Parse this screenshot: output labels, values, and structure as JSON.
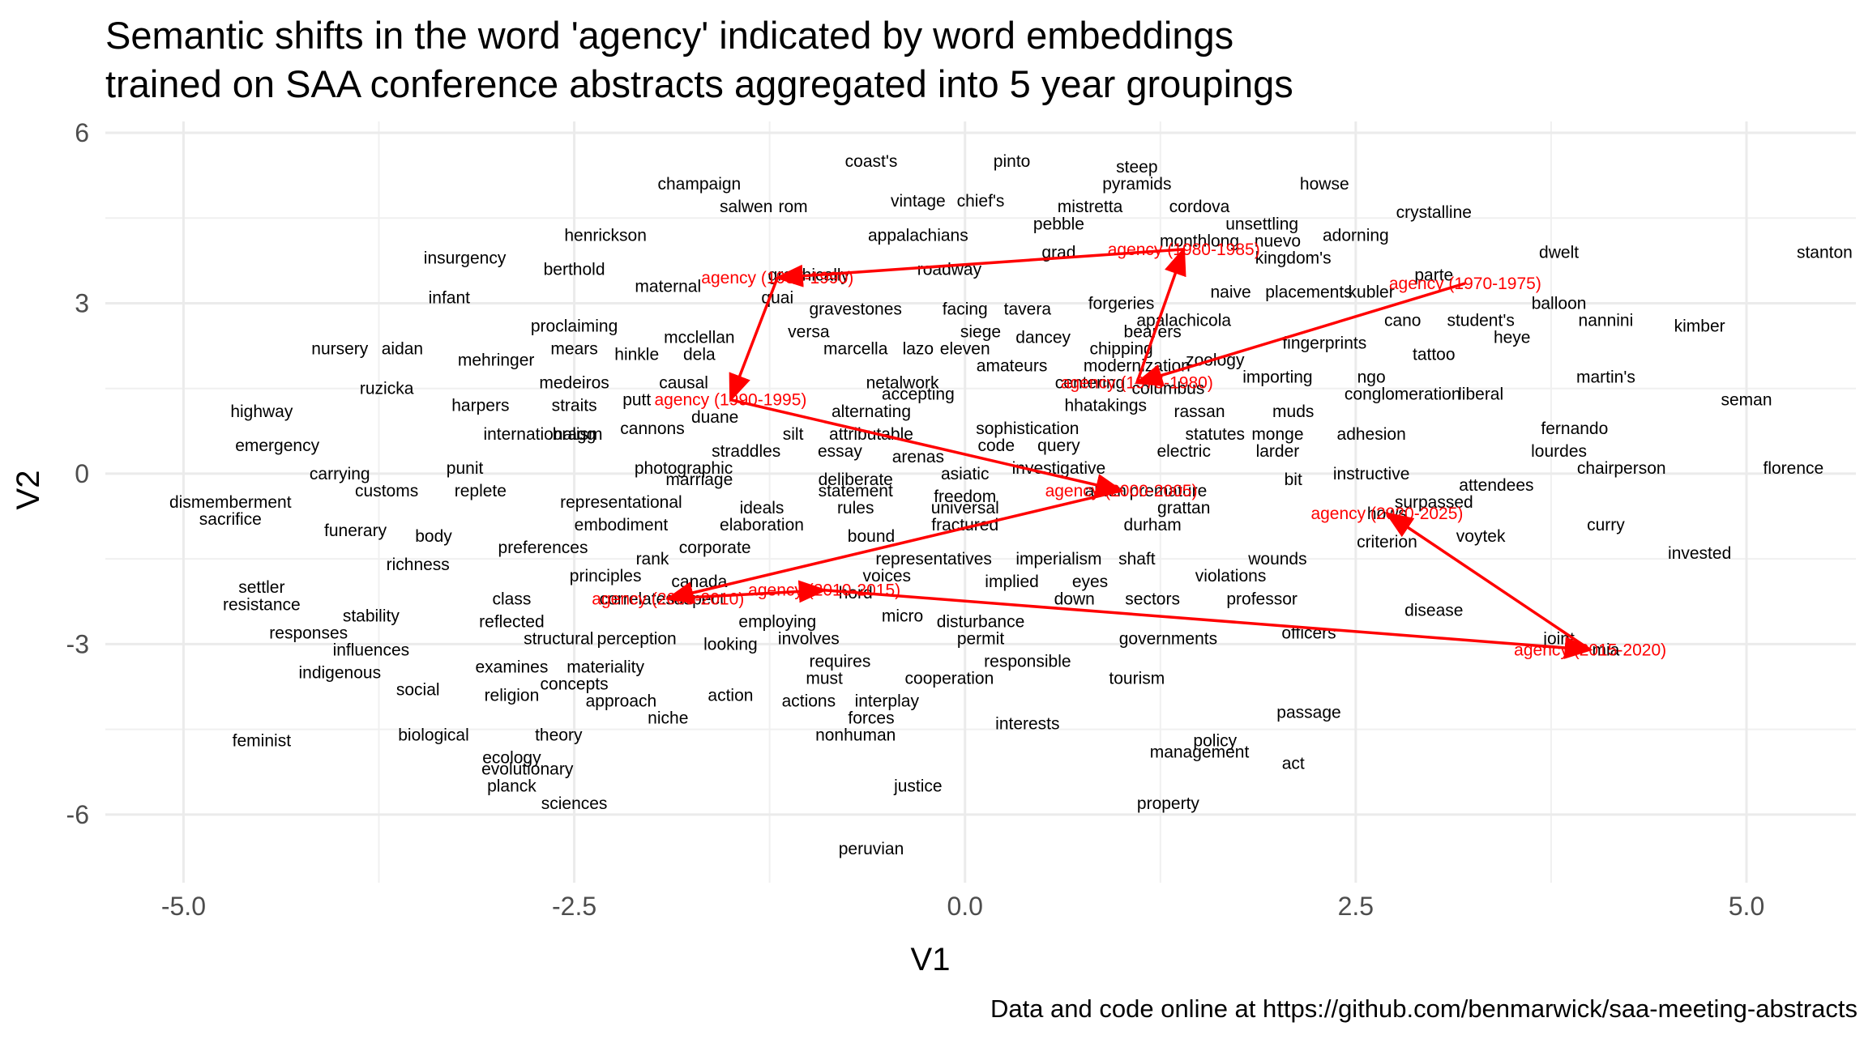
{
  "chart_data": {
    "type": "scatter",
    "title": [
      "Semantic shifts in the word 'agency' indicated by word embeddings",
      "trained on SAA conference abstracts aggregated into 5 year groupings"
    ],
    "xlabel": "V1",
    "ylabel": "V2",
    "xlim": [
      -5.5,
      5.7
    ],
    "ylim": [
      -7.2,
      6.2
    ],
    "x_ticks": [
      {
        "v": -5,
        "label": "-5.0"
      },
      {
        "v": -2.5,
        "label": "-2.5"
      },
      {
        "v": 0,
        "label": "0.0"
      },
      {
        "v": 2.5,
        "label": "2.5"
      },
      {
        "v": 5,
        "label": "5.0"
      }
    ],
    "y_ticks": [
      {
        "v": 6,
        "label": "6"
      },
      {
        "v": 3,
        "label": "3"
      },
      {
        "v": 0,
        "label": "0"
      },
      {
        "v": -3,
        "label": "-3"
      },
      {
        "v": -6,
        "label": "-6"
      }
    ],
    "grid": true,
    "caption": "Data and code online at https://github.com/benmarwick/saa-meeting-abstracts",
    "words": [
      [
        "coast's",
        -0.6,
        5.5
      ],
      [
        "pinto",
        0.3,
        5.5
      ],
      [
        "steep",
        1.1,
        5.4
      ],
      [
        "pyramids",
        1.1,
        5.1
      ],
      [
        "champaign",
        -1.7,
        5.1
      ],
      [
        "howse",
        2.3,
        5.1
      ],
      [
        "vintage",
        -0.3,
        4.8
      ],
      [
        "chief's",
        0.1,
        4.8
      ],
      [
        "mistretta",
        0.8,
        4.7
      ],
      [
        "cordova",
        1.5,
        4.7
      ],
      [
        "salwen",
        -1.4,
        4.7
      ],
      [
        "rom",
        -1.1,
        4.7
      ],
      [
        "pebble",
        0.6,
        4.4
      ],
      [
        "unsettling",
        1.9,
        4.4
      ],
      [
        "crystalline",
        3.0,
        4.6
      ],
      [
        "henrickson",
        -2.3,
        4.2
      ],
      [
        "appalachians",
        -0.3,
        4.2
      ],
      [
        "adorning",
        2.5,
        4.2
      ],
      [
        "nuevo",
        2.0,
        4.1
      ],
      [
        "monthlong",
        1.5,
        4.1
      ],
      [
        "dwelt",
        3.8,
        3.9
      ],
      [
        "stanton",
        5.5,
        3.9
      ],
      [
        "insurgency",
        -3.2,
        3.8
      ],
      [
        "grad",
        0.6,
        3.9
      ],
      [
        "kingdom's",
        2.1,
        3.8
      ],
      [
        "berthold",
        -2.5,
        3.6
      ],
      [
        "roadway",
        -0.1,
        3.6
      ],
      [
        "graphically",
        -1.0,
        3.5
      ],
      [
        "parte",
        3.0,
        3.5
      ],
      [
        "maternal",
        -1.9,
        3.3
      ],
      [
        "infant",
        -3.3,
        3.1
      ],
      [
        "naive",
        1.7,
        3.2
      ],
      [
        "placements",
        2.2,
        3.2
      ],
      [
        "kubler",
        2.6,
        3.2
      ],
      [
        "forgeries",
        1.0,
        3.0
      ],
      [
        "quai",
        -1.2,
        3.1
      ],
      [
        "gravestones",
        -0.7,
        2.9
      ],
      [
        "facing",
        0.0,
        2.9
      ],
      [
        "tavera",
        0.4,
        2.9
      ],
      [
        "balloon",
        3.8,
        3.0
      ],
      [
        "apalachicola",
        1.4,
        2.7
      ],
      [
        "nannini",
        4.1,
        2.7
      ],
      [
        "cano",
        2.8,
        2.7
      ],
      [
        "student's",
        3.3,
        2.7
      ],
      [
        "kimber",
        4.7,
        2.6
      ],
      [
        "proclaiming",
        -2.5,
        2.6
      ],
      [
        "versa",
        -1.0,
        2.5
      ],
      [
        "siege",
        0.1,
        2.5
      ],
      [
        "dancey",
        0.5,
        2.4
      ],
      [
        "bearers",
        1.2,
        2.5
      ],
      [
        "heye",
        3.5,
        2.4
      ],
      [
        "nursery",
        -4.0,
        2.2
      ],
      [
        "aidan",
        -3.6,
        2.2
      ],
      [
        "mcclellan",
        -1.7,
        2.4
      ],
      [
        "marcella",
        -0.7,
        2.2
      ],
      [
        "lazo",
        -0.3,
        2.2
      ],
      [
        "eleven",
        0.0,
        2.2
      ],
      [
        "chipping",
        1.0,
        2.2
      ],
      [
        "fingerprints",
        2.3,
        2.3
      ],
      [
        "mears",
        -2.5,
        2.2
      ],
      [
        "hinkle",
        -2.1,
        2.1
      ],
      [
        "dela",
        -1.7,
        2.1
      ],
      [
        "mehringer",
        -3.0,
        2.0
      ],
      [
        "tattoo",
        3.0,
        2.1
      ],
      [
        "amateurs",
        0.3,
        1.9
      ],
      [
        "zoology",
        1.6,
        2.0
      ],
      [
        "modernization",
        1.1,
        1.9
      ],
      [
        "martin's",
        4.1,
        1.7
      ],
      [
        "medeiros",
        -2.5,
        1.6
      ],
      [
        "importing",
        2.0,
        1.7
      ],
      [
        "ngo",
        2.6,
        1.7
      ],
      [
        "netalwork",
        -0.4,
        1.6
      ],
      [
        "causal",
        -1.8,
        1.6
      ],
      [
        "ruzicka",
        -3.7,
        1.5
      ],
      [
        "centering",
        0.8,
        1.6
      ],
      [
        "columbus",
        1.3,
        1.5
      ],
      [
        "accepting",
        -0.3,
        1.4
      ],
      [
        "conglomeration",
        2.8,
        1.4
      ],
      [
        "liberal",
        3.3,
        1.4
      ],
      [
        "putt",
        -2.1,
        1.3
      ],
      [
        "straits",
        -2.5,
        1.2
      ],
      [
        "seman",
        5.0,
        1.3
      ],
      [
        "harpers",
        -3.1,
        1.2
      ],
      [
        "hhatakings",
        0.9,
        1.2
      ],
      [
        "rassan",
        1.5,
        1.1
      ],
      [
        "muds",
        2.1,
        1.1
      ],
      [
        "highway",
        -4.5,
        1.1
      ],
      [
        "alternating",
        -0.6,
        1.1
      ],
      [
        "duane",
        -1.6,
        1.0
      ],
      [
        "sophistication",
        0.4,
        0.8
      ],
      [
        "cannons",
        -2.0,
        0.8
      ],
      [
        "internationalism",
        -2.7,
        0.7
      ],
      [
        "bragg",
        -2.5,
        0.7
      ],
      [
        "silt",
        -1.1,
        0.7
      ],
      [
        "attributable",
        -0.6,
        0.7
      ],
      [
        "statutes",
        1.6,
        0.7
      ],
      [
        "monge",
        2.0,
        0.7
      ],
      [
        "fernando",
        3.9,
        0.8
      ],
      [
        "adhesion",
        2.6,
        0.7
      ],
      [
        "code",
        0.2,
        0.5
      ],
      [
        "query",
        0.6,
        0.5
      ],
      [
        "emergency",
        -4.4,
        0.5
      ],
      [
        "straddles",
        -1.4,
        0.4
      ],
      [
        "essay",
        -0.8,
        0.4
      ],
      [
        "arenas",
        -0.3,
        0.3
      ],
      [
        "electric",
        1.4,
        0.4
      ],
      [
        "larder",
        2.0,
        0.4
      ],
      [
        "lourdes",
        3.8,
        0.4
      ],
      [
        "investigative",
        0.6,
        0.1
      ],
      [
        "punit",
        -3.2,
        0.1
      ],
      [
        "photographic",
        -1.8,
        0.1
      ],
      [
        "asiatic",
        0.0,
        0.0
      ],
      [
        "carrying",
        -4.0,
        0.0
      ],
      [
        "chairperson",
        4.2,
        0.1
      ],
      [
        "florence",
        5.3,
        0.1
      ],
      [
        "instructive",
        2.6,
        0.0
      ],
      [
        "deliberate",
        -0.7,
        -0.1
      ],
      [
        "marriage",
        -1.7,
        -0.1
      ],
      [
        "bit",
        2.1,
        -0.1
      ],
      [
        "attendees",
        3.4,
        -0.2
      ],
      [
        "alden",
        0.9,
        -0.3
      ],
      [
        "premature",
        1.3,
        -0.3
      ],
      [
        "customs",
        -3.7,
        -0.3
      ],
      [
        "replete",
        -3.1,
        -0.3
      ],
      [
        "statement",
        -0.7,
        -0.3
      ],
      [
        "freedom",
        0.0,
        -0.4
      ],
      [
        "surpassed",
        3.0,
        -0.5
      ],
      [
        "dismemberment",
        -4.7,
        -0.5
      ],
      [
        "representational",
        -2.2,
        -0.5
      ],
      [
        "ideals",
        -1.3,
        -0.6
      ],
      [
        "rules",
        -0.7,
        -0.6
      ],
      [
        "universal",
        0.0,
        -0.6
      ],
      [
        "grattan",
        1.4,
        -0.6
      ],
      [
        "hows",
        2.7,
        -0.7
      ],
      [
        "sacrifice",
        -4.7,
        -0.8
      ],
      [
        "embodiment",
        -2.2,
        -0.9
      ],
      [
        "elaboration",
        -1.3,
        -0.9
      ],
      [
        "fractured",
        0.0,
        -0.9
      ],
      [
        "durham",
        1.2,
        -0.9
      ],
      [
        "curry",
        4.1,
        -0.9
      ],
      [
        "funerary",
        -3.9,
        -1.0
      ],
      [
        "body",
        -3.4,
        -1.1
      ],
      [
        "bound",
        -0.6,
        -1.1
      ],
      [
        "voytek",
        3.3,
        -1.1
      ],
      [
        "criterion",
        2.7,
        -1.2
      ],
      [
        "preferences",
        -2.7,
        -1.3
      ],
      [
        "corporate",
        -1.6,
        -1.3
      ],
      [
        "rank",
        -2.0,
        -1.5
      ],
      [
        "representatives",
        -0.2,
        -1.5
      ],
      [
        "imperialism",
        0.6,
        -1.5
      ],
      [
        "shaft",
        1.1,
        -1.5
      ],
      [
        "wounds",
        2.0,
        -1.5
      ],
      [
        "invested",
        4.7,
        -1.4
      ],
      [
        "richness",
        -3.5,
        -1.6
      ],
      [
        "principles",
        -2.3,
        -1.8
      ],
      [
        "voices",
        -0.5,
        -1.8
      ],
      [
        "violations",
        1.7,
        -1.8
      ],
      [
        "canada",
        -1.7,
        -1.9
      ],
      [
        "implied",
        0.3,
        -1.9
      ],
      [
        "eyes",
        0.8,
        -1.9
      ],
      [
        "settler",
        -4.5,
        -2.0
      ],
      [
        "class",
        -2.9,
        -2.2
      ],
      [
        "hord",
        -0.7,
        -2.1
      ],
      [
        "correlates",
        -2.1,
        -2.2
      ],
      [
        "aspect",
        -1.7,
        -2.2
      ],
      [
        "down",
        0.7,
        -2.2
      ],
      [
        "sectors",
        1.2,
        -2.2
      ],
      [
        "professor",
        1.9,
        -2.2
      ],
      [
        "resistance",
        -4.5,
        -2.3
      ],
      [
        "disease",
        3.0,
        -2.4
      ],
      [
        "micro",
        -0.4,
        -2.5
      ],
      [
        "stability",
        -3.8,
        -2.5
      ],
      [
        "reflected",
        -2.9,
        -2.6
      ],
      [
        "employing",
        -1.2,
        -2.6
      ],
      [
        "disturbance",
        0.1,
        -2.6
      ],
      [
        "officers",
        2.2,
        -2.8
      ],
      [
        "responses",
        -4.2,
        -2.8
      ],
      [
        "structural",
        -2.6,
        -2.9
      ],
      [
        "perception",
        -2.1,
        -2.9
      ],
      [
        "involves",
        -1.0,
        -2.9
      ],
      [
        "permit",
        0.1,
        -2.9
      ],
      [
        "governments",
        1.3,
        -2.9
      ],
      [
        "joint",
        3.8,
        -2.9
      ],
      [
        "looking",
        -1.5,
        -3.0
      ],
      [
        "influences",
        -3.8,
        -3.1
      ],
      [
        "mia",
        4.1,
        -3.1
      ],
      [
        "requires",
        -0.8,
        -3.3
      ],
      [
        "responsible",
        0.4,
        -3.3
      ],
      [
        "examines",
        -2.9,
        -3.4
      ],
      [
        "materiality",
        -2.3,
        -3.4
      ],
      [
        "indigenous",
        -4.0,
        -3.5
      ],
      [
        "must",
        -0.9,
        -3.6
      ],
      [
        "cooperation",
        -0.1,
        -3.6
      ],
      [
        "tourism",
        1.1,
        -3.6
      ],
      [
        "concepts",
        -2.5,
        -3.7
      ],
      [
        "social",
        -3.5,
        -3.8
      ],
      [
        "religion",
        -2.9,
        -3.9
      ],
      [
        "action",
        -1.5,
        -3.9
      ],
      [
        "approach",
        -2.2,
        -4.0
      ],
      [
        "interplay",
        -0.5,
        -4.0
      ],
      [
        "actions",
        -1.0,
        -4.0
      ],
      [
        "passage",
        2.2,
        -4.2
      ],
      [
        "forces",
        -0.6,
        -4.3
      ],
      [
        "niche",
        -1.9,
        -4.3
      ],
      [
        "interests",
        0.4,
        -4.4
      ],
      [
        "biological",
        -3.4,
        -4.6
      ],
      [
        "theory",
        -2.6,
        -4.6
      ],
      [
        "feminist",
        -4.5,
        -4.7
      ],
      [
        "nonhuman",
        -0.7,
        -4.6
      ],
      [
        "policy",
        1.6,
        -4.7
      ],
      [
        "ecology",
        -2.9,
        -5.0
      ],
      [
        "management",
        1.5,
        -4.9
      ],
      [
        "evolutionary",
        -2.8,
        -5.2
      ],
      [
        "act",
        2.1,
        -5.1
      ],
      [
        "justice",
        -0.3,
        -5.5
      ],
      [
        "planck",
        -2.9,
        -5.5
      ],
      [
        "sciences",
        -2.5,
        -5.8
      ],
      [
        "property",
        1.3,
        -5.8
      ],
      [
        "peruvian",
        -0.6,
        -6.6
      ]
    ],
    "series": [
      {
        "name": "agency (1970-1975)",
        "x": 3.2,
        "y": 3.35
      },
      {
        "name": "agency (1975-1980)",
        "x": 1.1,
        "y": 1.6
      },
      {
        "name": "agency (1980-1985)",
        "x": 1.4,
        "y": 3.95
      },
      {
        "name": "agency (1985-1990)",
        "x": -1.2,
        "y": 3.45
      },
      {
        "name": "agency (1990-1995)",
        "x": -1.5,
        "y": 1.3
      },
      {
        "name": "agency (2000-2005)",
        "x": 1.0,
        "y": -0.3
      },
      {
        "name": "agency (2005-2010)",
        "x": -1.9,
        "y": -2.2
      },
      {
        "name": "agency (2010-2015)",
        "x": -0.9,
        "y": -2.05
      },
      {
        "name": "agency (2015-2020)",
        "x": 4.0,
        "y": -3.1
      },
      {
        "name": "agency (2020-2025)",
        "x": 2.7,
        "y": -0.7
      }
    ],
    "path_order": [
      0,
      1,
      2,
      3,
      4,
      5,
      6,
      7,
      8,
      9
    ],
    "highlight_color": "#ff0000"
  }
}
